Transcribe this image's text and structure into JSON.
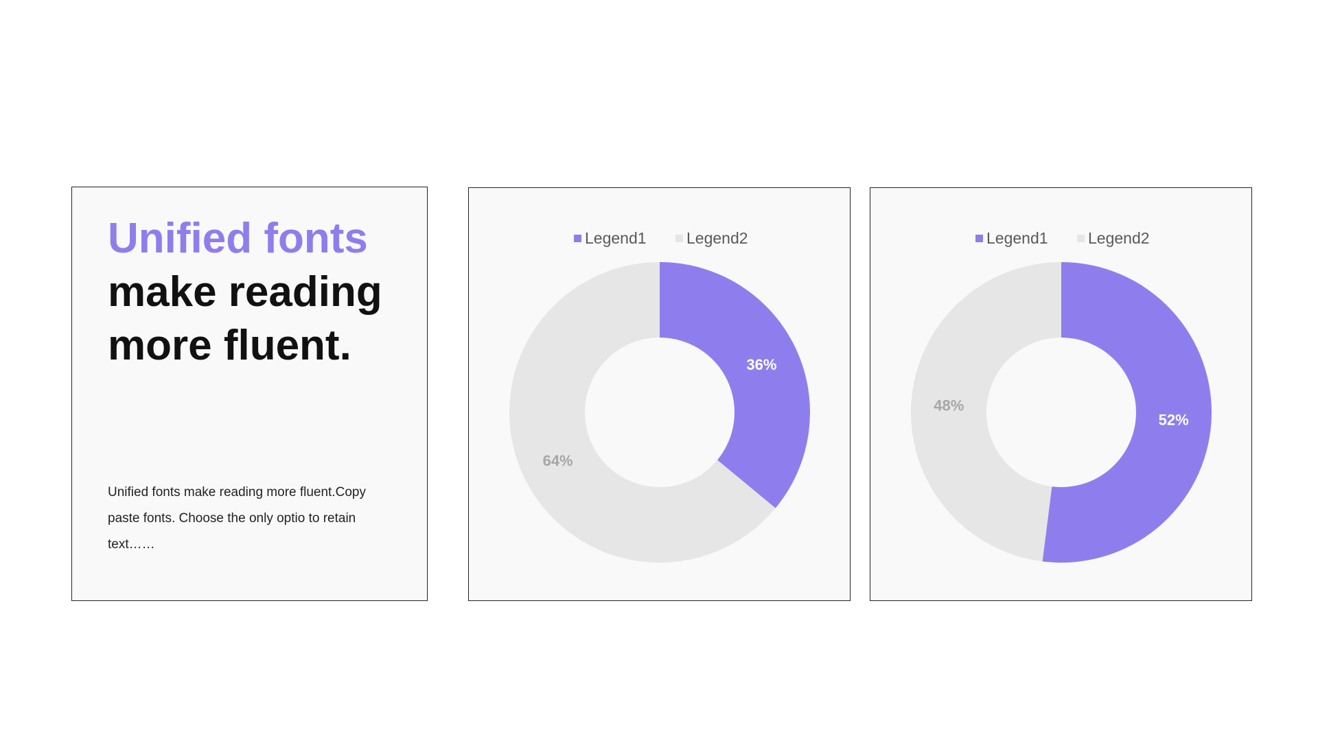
{
  "headline": {
    "accent": "Unified fonts",
    "rest": "make reading more fluent."
  },
  "body_text": "Unified fonts make reading more fluent.Copy paste fonts. Choose the only optio to retain text……",
  "colors": {
    "accent": "#8e7eed",
    "muted": "#e6e6e6",
    "muted_label": "#a6a6a6",
    "legend_text": "#595959"
  },
  "chart_data": [
    {
      "type": "pie",
      "donut": true,
      "legend_position": "top",
      "series": [
        {
          "name": "Legend1",
          "value": 36,
          "label": "36%"
        },
        {
          "name": "Legend2",
          "value": 64,
          "label": "64%"
        }
      ]
    },
    {
      "type": "pie",
      "donut": true,
      "legend_position": "top",
      "series": [
        {
          "name": "Legend1",
          "value": 52,
          "label": "52%"
        },
        {
          "name": "Legend2",
          "value": 48,
          "label": "48%"
        }
      ]
    }
  ]
}
